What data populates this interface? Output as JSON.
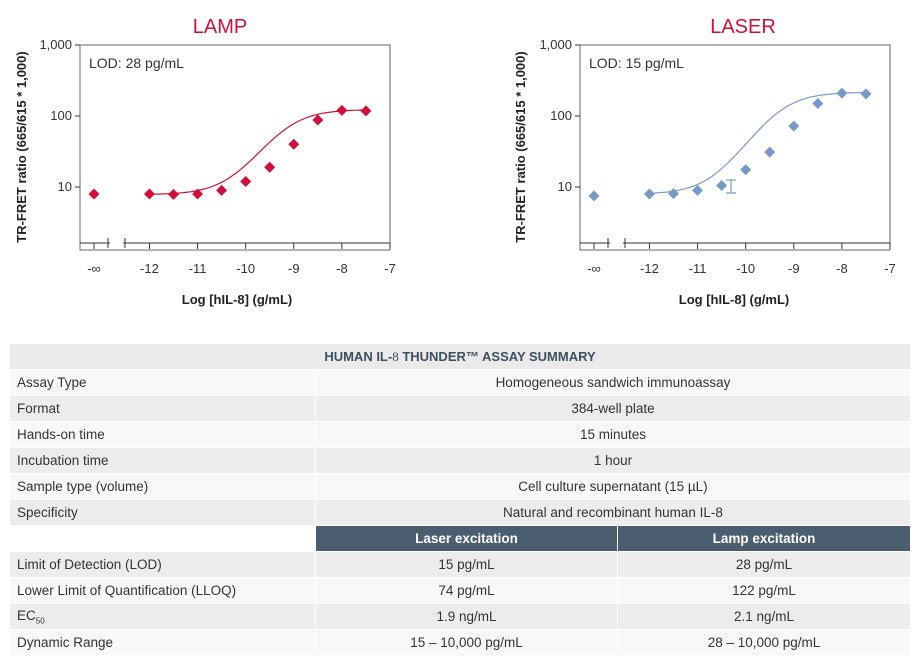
{
  "chart_data": [
    {
      "type": "scatter",
      "title": "LAMP",
      "annotation": "LOD: 28 pg/mL",
      "xlabel": "Log [hIL-8] (g/mL)",
      "ylabel": "TR-FRET ratio (665/615 * 1,000)",
      "yscale": "log",
      "ylim": [
        1.3,
        1000
      ],
      "xlim": [
        -12.55,
        -7
      ],
      "y_ticks": [
        10,
        100,
        1000
      ],
      "y_tick_labels": [
        "10",
        "100",
        "1,000"
      ],
      "x_ticks": [
        -12,
        -11,
        -10,
        -9,
        -8,
        -7
      ],
      "x_tick_labels": [
        "-12",
        "-11",
        "-10",
        "-9",
        "-8",
        "-7"
      ],
      "x_break_label": "-∞",
      "color": "#d0103a",
      "marker": "diamond",
      "series": [
        {
          "x": [
            "-∞",
            -12,
            -11.5,
            -11,
            -10.5,
            -10,
            -9.5,
            -9,
            -8.5,
            -8,
            -7.5
          ],
          "y": [
            8.0,
            8.0,
            7.9,
            8.0,
            9.0,
            12,
            19,
            40,
            88,
            120,
            118
          ]
        }
      ]
    },
    {
      "type": "scatter",
      "title": "LASER",
      "annotation": "LOD: 15 pg/mL",
      "xlabel": "Log [hIL-8] (g/mL)",
      "ylabel": "TR-FRET ratio (665/615 * 1,000)",
      "yscale": "log",
      "ylim": [
        1.3,
        1000
      ],
      "xlim": [
        -12.55,
        -7
      ],
      "y_ticks": [
        10,
        100,
        1000
      ],
      "y_tick_labels": [
        "10",
        "100",
        "1,000"
      ],
      "x_ticks": [
        -12,
        -11,
        -10,
        -9,
        -8,
        -7
      ],
      "x_tick_labels": [
        "-12",
        "-11",
        "-10",
        "-9",
        "-8",
        "-7"
      ],
      "x_break_label": "-∞",
      "color": "#7699c6",
      "marker": "diamond",
      "series": [
        {
          "x": [
            "-∞",
            -12,
            -11.5,
            -11,
            -10.5,
            -10,
            -9.5,
            -9,
            -8.5,
            -8,
            -7.5
          ],
          "y": [
            7.5,
            8.0,
            8.1,
            9.0,
            10.5,
            17.5,
            31,
            72,
            150,
            210,
            205
          ]
        }
      ]
    }
  ],
  "table": {
    "title_prefix": "HUMAN IL-",
    "title_num": "8",
    "title_suffix": " THUNDER™ ASSAY SUMMARY",
    "rows": [
      {
        "label": "Assay Type",
        "value": "Homogeneous sandwich immunoassay"
      },
      {
        "label": "Format",
        "value": "384-well plate"
      },
      {
        "label": "Hands-on time",
        "value": "15 minutes"
      },
      {
        "label": "Incubation time",
        "value": "1 hour"
      },
      {
        "label": "Sample type (volume)",
        "value": "Cell culture supernatant (15 µL)"
      },
      {
        "label": "Specificity",
        "value": "Natural and recombinant human IL-8"
      }
    ],
    "col_headers": [
      "Laser excitation",
      "Lamp excitation"
    ],
    "rows2": [
      {
        "label": "Limit of Detection (LOD)",
        "laser": "15 pg/mL",
        "lamp": "28 pg/mL"
      },
      {
        "label": "Lower Limit of Quantification (LLOQ)",
        "laser": "74 pg/mL",
        "lamp": "122 pg/mL"
      },
      {
        "label_main": "EC",
        "label_sub": "50",
        "laser": "1.9 ng/mL",
        "lamp": "2.1 ng/mL"
      },
      {
        "label": "Dynamic Range",
        "laser": "15 – 10,000 pg/mL",
        "lamp": "28 – 10,000 pg/mL"
      }
    ]
  }
}
